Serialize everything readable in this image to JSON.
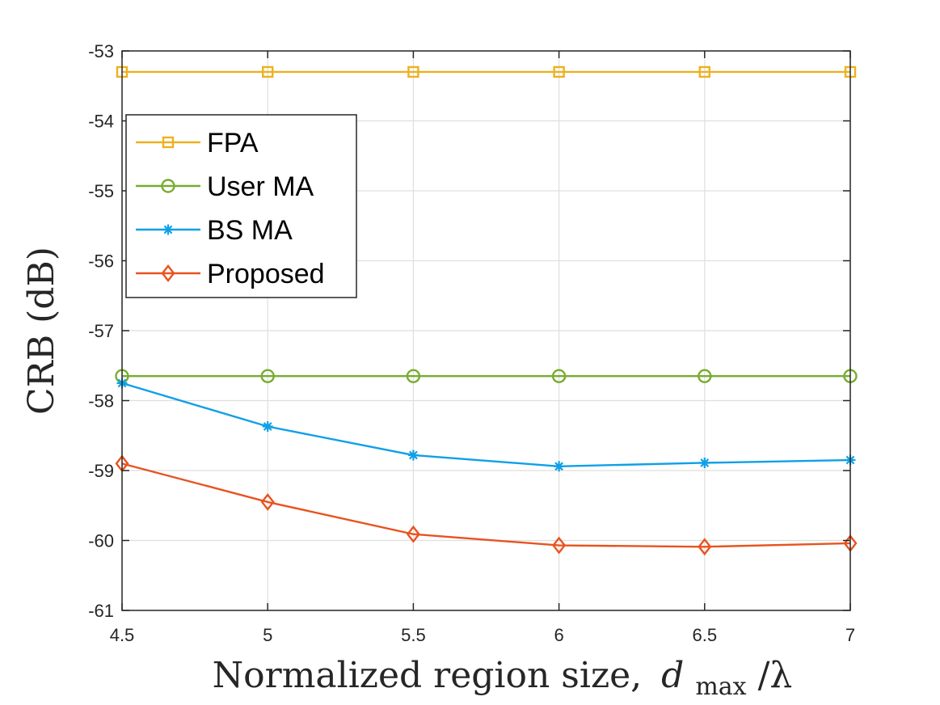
{
  "chart_data": {
    "type": "line",
    "title": "",
    "xlabel_main": "Normalized region size,",
    "xlabel_var": "d",
    "xlabel_sub": "max",
    "xlabel_tail": "/λ",
    "ylabel": "CRB (dB)",
    "xlim": [
      4.5,
      7
    ],
    "ylim": [
      -61,
      -53
    ],
    "xticks": [
      4.5,
      5,
      5.5,
      6,
      6.5,
      7
    ],
    "xtick_labels": [
      "4.5",
      "5",
      "5.5",
      "6",
      "6.5",
      "7"
    ],
    "yticks": [
      -61,
      -60,
      -59,
      -58,
      -57,
      -56,
      -55,
      -54,
      -53
    ],
    "ytick_labels": [
      "-61",
      "-60",
      "-59",
      "-58",
      "-57",
      "-56",
      "-55",
      "-54",
      "-53"
    ],
    "grid": true,
    "legend_position": "top-left",
    "x": [
      4.5,
      5,
      5.5,
      6,
      6.5,
      7
    ],
    "series": [
      {
        "name": "FPA",
        "marker": "square",
        "color": "#EDB120",
        "values": [
          -53.3,
          -53.3,
          -53.3,
          -53.3,
          -53.3,
          -53.3
        ]
      },
      {
        "name": "User MA",
        "marker": "circle",
        "color": "#77AC30",
        "values": [
          -57.65,
          -57.65,
          -57.65,
          -57.65,
          -57.65,
          -57.65
        ]
      },
      {
        "name": "BS MA",
        "marker": "asterisk",
        "color": "#0FA0E6",
        "values": [
          -57.75,
          -58.37,
          -58.78,
          -58.94,
          -58.89,
          -58.85
        ]
      },
      {
        "name": "Proposed",
        "marker": "diamond",
        "color": "#E8531F",
        "values": [
          -58.9,
          -59.45,
          -59.91,
          -60.07,
          -60.09,
          -60.04
        ]
      }
    ]
  }
}
